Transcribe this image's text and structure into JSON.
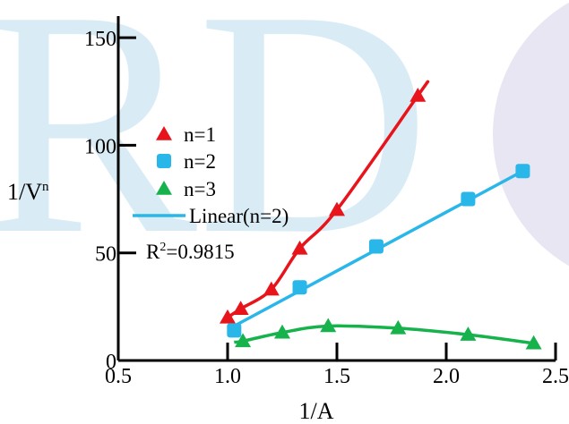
{
  "watermark": {
    "text": "RD",
    "color": "#d9ecf5",
    "circle_color": "#e8e6f2"
  },
  "chart_data": {
    "type": "scatter",
    "title": "",
    "xlabel": "1/A",
    "ylabel": "1/V",
    "ylabel_sup": "n",
    "xlim": [
      0.5,
      2.5
    ],
    "ylim": [
      0,
      160
    ],
    "xticks": [
      0.5,
      1.0,
      1.5,
      2.0,
      2.5
    ],
    "xtick_labels": [
      "0.5",
      "1.0",
      "1.5",
      "2.0",
      "2.5"
    ],
    "yticks": [
      0,
      50,
      100,
      150
    ],
    "ytick_labels": [
      "0",
      "50",
      "100",
      "150"
    ],
    "grid": false,
    "legend_position": "left-middle",
    "series": [
      {
        "name": "n=1",
        "marker": "triangle",
        "color": "#e8141b",
        "line": "smooth",
        "x": [
          1.0,
          1.06,
          1.2,
          1.33,
          1.5,
          1.87
        ],
        "y": [
          20,
          24,
          33,
          52,
          70,
          123
        ]
      },
      {
        "name": "n=2",
        "marker": "square",
        "color": "#29b6e8",
        "line": "linear-fit",
        "x": [
          1.03,
          1.33,
          1.68,
          2.1,
          2.35
        ],
        "y": [
          14,
          34,
          53,
          75,
          88
        ]
      },
      {
        "name": "n=3",
        "marker": "triangle",
        "color": "#16b24b",
        "line": "smooth",
        "x": [
          1.07,
          1.25,
          1.46,
          1.78,
          2.1,
          2.4
        ],
        "y": [
          9,
          13,
          16,
          15,
          12,
          8
        ]
      }
    ],
    "fit": {
      "name": "Linear(n=2)",
      "color": "#29b6e8",
      "x": [
        1.03,
        2.35
      ],
      "y": [
        16,
        88
      ]
    },
    "annotation": {
      "prefix": "R",
      "sup": "2",
      "suffix": "=0.9815"
    }
  }
}
